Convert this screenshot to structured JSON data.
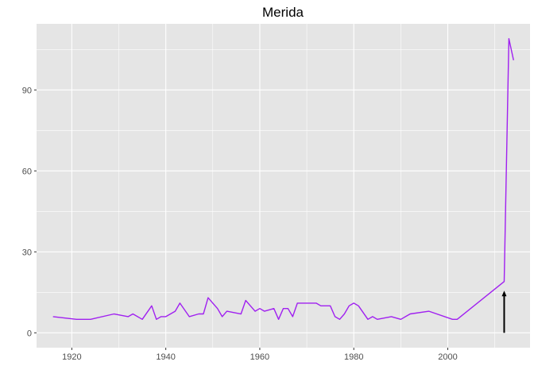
{
  "chart_data": {
    "type": "line",
    "title": "Merida",
    "xlabel": "",
    "ylabel": "",
    "xlim": [
      1912.5,
      2017.5
    ],
    "ylim": [
      -5.5,
      114.5
    ],
    "x_ticks": [
      1920,
      1940,
      1960,
      1980,
      2000
    ],
    "y_ticks": [
      0,
      30,
      60,
      90
    ],
    "grid": true,
    "colors": {
      "panel": "#e5e5e5",
      "grid": "#ffffff",
      "series": "#a020f0",
      "arrow": "#000000"
    },
    "series": [
      {
        "x": [
          1916,
          1921,
          1924,
          1929,
          1932,
          1933,
          1935,
          1937,
          1938,
          1939,
          1940,
          1942,
          1943,
          1945,
          1947,
          1948,
          1949,
          1951,
          1952,
          1953,
          1956,
          1957,
          1959,
          1960,
          1961,
          1963,
          1964,
          1965,
          1966,
          1967,
          1968,
          1972,
          1973,
          1975,
          1976,
          1977,
          1978,
          1979,
          1980,
          1981,
          1983,
          1984,
          1985,
          1988,
          1990,
          1992,
          1996,
          2001,
          2002,
          2012,
          2013,
          2014
        ],
        "y": [
          6,
          5,
          5,
          7,
          6,
          7,
          5,
          10,
          5,
          6,
          6,
          8,
          11,
          6,
          7,
          7,
          13,
          9,
          6,
          8,
          7,
          12,
          8,
          9,
          8,
          9,
          5,
          9,
          9,
          6,
          11,
          11,
          10,
          10,
          6,
          5,
          7,
          10,
          11,
          10,
          5,
          6,
          5,
          6,
          5,
          7,
          8,
          5,
          5,
          19,
          109,
          101
        ]
      }
    ],
    "annotations": [
      {
        "type": "arrow",
        "x": 2012,
        "y_from": 0,
        "y_to": 15
      }
    ]
  }
}
